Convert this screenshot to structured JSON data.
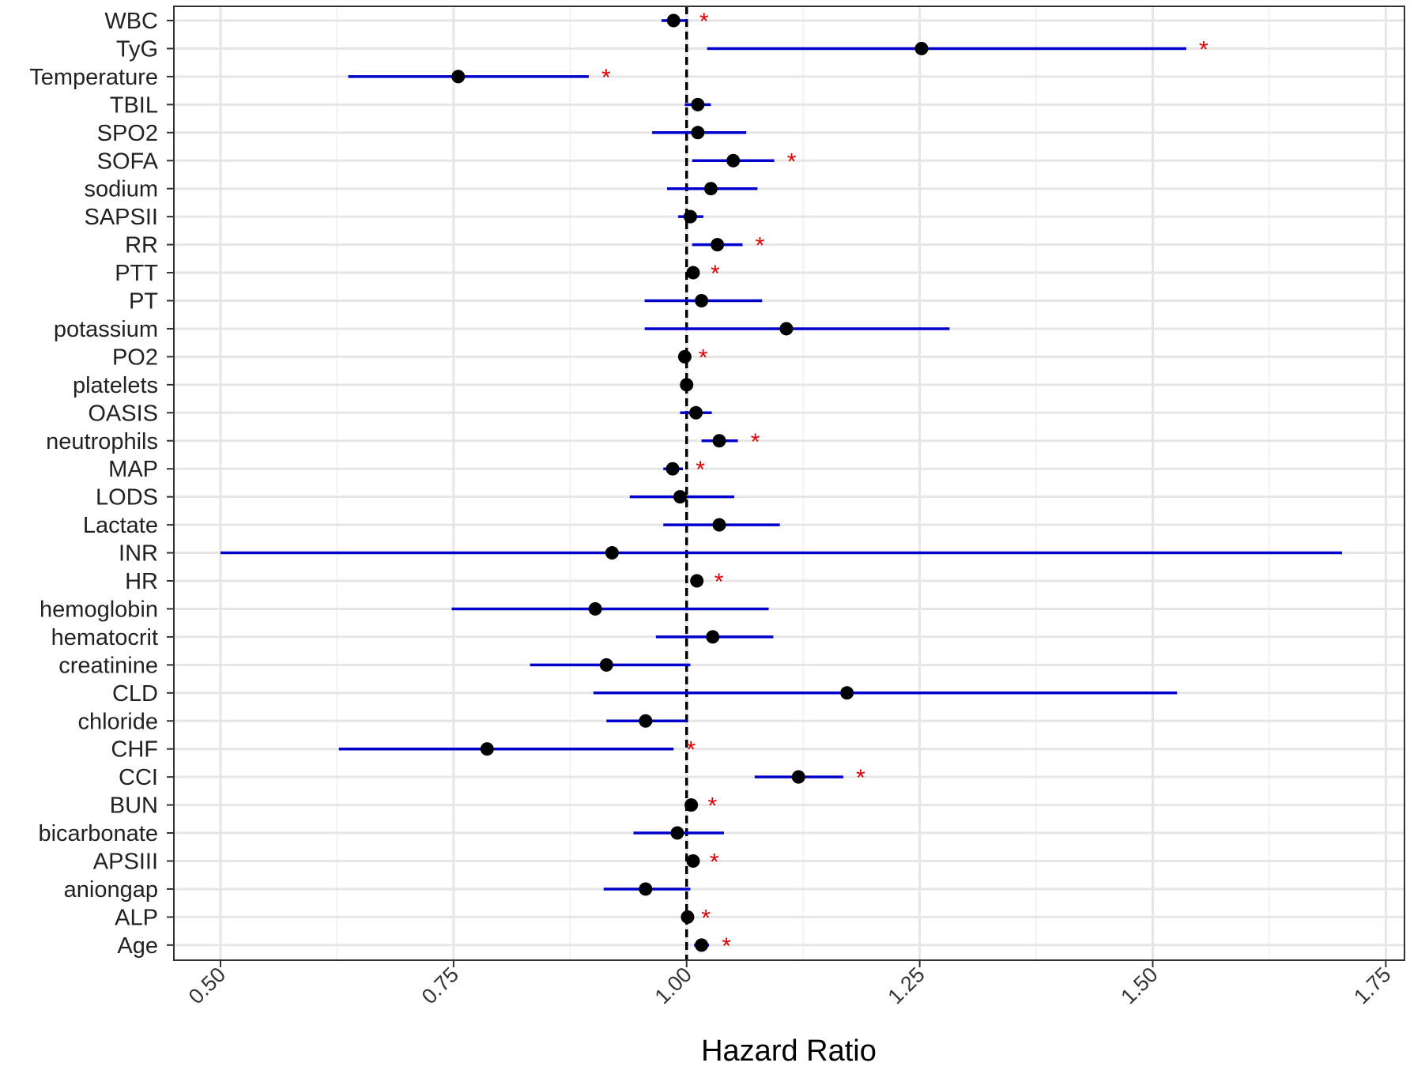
{
  "chart_data": {
    "type": "forest",
    "xlabel": "Hazard Ratio",
    "xlim": [
      0.45,
      1.77
    ],
    "x_ticks": [
      0.5,
      0.75,
      1.0,
      1.25,
      1.5,
      1.75
    ],
    "x_tick_labels": [
      "0.50",
      "0.75",
      "1.00",
      "1.25",
      "1.50",
      "1.75"
    ],
    "reference_line": 1.0,
    "grid": true,
    "significance_marker": "*",
    "colors": {
      "ci": "#0000cc",
      "point": "#000000",
      "star": "#e00000",
      "grid": "#e6e6e6",
      "panel_border": "#333333"
    },
    "rows": [
      {
        "label": "WBC",
        "hr": 0.986,
        "lo": 0.973,
        "hi": 1.0,
        "sig": true
      },
      {
        "label": "TyG",
        "hr": 1.252,
        "lo": 1.022,
        "hi": 1.536,
        "sig": true
      },
      {
        "label": "Temperature",
        "hr": 0.755,
        "lo": 0.637,
        "hi": 0.895,
        "sig": true
      },
      {
        "label": "TBIL",
        "hr": 1.012,
        "lo": 0.998,
        "hi": 1.026,
        "sig": false
      },
      {
        "label": "SPO2",
        "hr": 1.012,
        "lo": 0.963,
        "hi": 1.064,
        "sig": false
      },
      {
        "label": "SOFA",
        "hr": 1.05,
        "lo": 1.006,
        "hi": 1.094,
        "sig": true
      },
      {
        "label": "sodium",
        "hr": 1.026,
        "lo": 0.979,
        "hi": 1.076,
        "sig": false
      },
      {
        "label": "SAPSII",
        "hr": 1.004,
        "lo": 0.991,
        "hi": 1.018,
        "sig": false
      },
      {
        "label": "RR",
        "hr": 1.033,
        "lo": 1.006,
        "hi": 1.06,
        "sig": true
      },
      {
        "label": "PTT",
        "hr": 1.007,
        "lo": 1.002,
        "hi": 1.012,
        "sig": true
      },
      {
        "label": "PT",
        "hr": 1.016,
        "lo": 0.955,
        "hi": 1.081,
        "sig": false
      },
      {
        "label": "potassium",
        "hr": 1.107,
        "lo": 0.955,
        "hi": 1.282,
        "sig": false
      },
      {
        "label": "PO2",
        "hr": 0.998,
        "lo": 0.997,
        "hi": 0.999,
        "sig": true
      },
      {
        "label": "platelets",
        "hr": 1.0,
        "lo": 0.999,
        "hi": 1.001,
        "sig": false
      },
      {
        "label": "OASIS",
        "hr": 1.01,
        "lo": 0.993,
        "hi": 1.027,
        "sig": false
      },
      {
        "label": "neutrophils",
        "hr": 1.035,
        "lo": 1.016,
        "hi": 1.055,
        "sig": true
      },
      {
        "label": "MAP",
        "hr": 0.985,
        "lo": 0.975,
        "hi": 0.996,
        "sig": true
      },
      {
        "label": "LODS",
        "hr": 0.993,
        "lo": 0.939,
        "hi": 1.051,
        "sig": false
      },
      {
        "label": "Lactate",
        "hr": 1.035,
        "lo": 0.975,
        "hi": 1.1,
        "sig": false
      },
      {
        "label": "INR",
        "hr": 0.92,
        "lo": 0.5,
        "hi": 1.703,
        "sig": false
      },
      {
        "label": "HR",
        "hr": 1.011,
        "lo": 1.005,
        "hi": 1.016,
        "sig": true
      },
      {
        "label": "hemoglobin",
        "hr": 0.902,
        "lo": 0.748,
        "hi": 1.088,
        "sig": false
      },
      {
        "label": "hematocrit",
        "hr": 1.028,
        "lo": 0.967,
        "hi": 1.093,
        "sig": false
      },
      {
        "label": "creatinine",
        "hr": 0.914,
        "lo": 0.832,
        "hi": 1.004,
        "sig": false
      },
      {
        "label": "CLD",
        "hr": 1.172,
        "lo": 0.9,
        "hi": 1.526,
        "sig": false
      },
      {
        "label": "chloride",
        "hr": 0.956,
        "lo": 0.914,
        "hi": 1.0,
        "sig": false
      },
      {
        "label": "CHF",
        "hr": 0.786,
        "lo": 0.627,
        "hi": 0.986,
        "sig": true
      },
      {
        "label": "CCI",
        "hr": 1.12,
        "lo": 1.073,
        "hi": 1.168,
        "sig": true
      },
      {
        "label": "BUN",
        "hr": 1.005,
        "lo": 1.002,
        "hi": 1.009,
        "sig": true
      },
      {
        "label": "bicarbonate",
        "hr": 0.99,
        "lo": 0.943,
        "hi": 1.04,
        "sig": false
      },
      {
        "label": "APSIII",
        "hr": 1.007,
        "lo": 1.003,
        "hi": 1.011,
        "sig": true
      },
      {
        "label": "aniongap",
        "hr": 0.956,
        "lo": 0.911,
        "hi": 1.004,
        "sig": false
      },
      {
        "label": "ALP",
        "hr": 1.001,
        "lo": 1.0,
        "hi": 1.002,
        "sig": true
      },
      {
        "label": "Age",
        "hr": 1.016,
        "lo": 1.008,
        "hi": 1.024,
        "sig": true
      }
    ]
  }
}
